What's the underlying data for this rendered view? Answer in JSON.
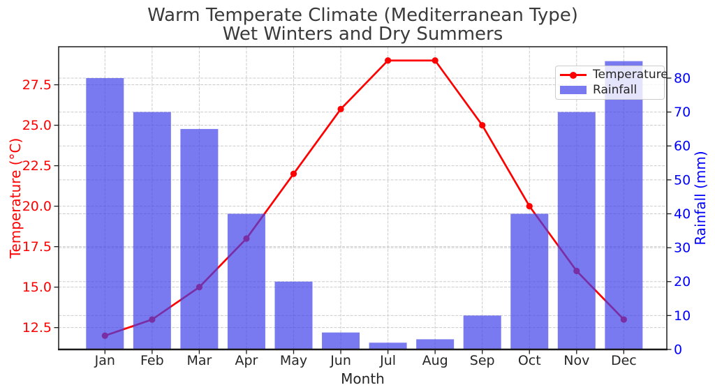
{
  "chart_data": {
    "type": "combo-line-bar",
    "title": "Warm Temperate Climate (Mediterranean Type)\nWet Winters and Dry Summers",
    "title_lines": [
      "Warm Temperate Climate (Mediterranean Type)",
      "Wet Winters and Dry Summers"
    ],
    "xlabel": "Month",
    "categories": [
      "Jan",
      "Feb",
      "Mar",
      "Apr",
      "May",
      "Jun",
      "Jul",
      "Aug",
      "Sep",
      "Oct",
      "Nov",
      "Dec"
    ],
    "series": [
      {
        "name": "Temperature",
        "chart": "line",
        "axis": "left",
        "unit": "°C",
        "color": "#ff0000",
        "marker": "circle",
        "values": [
          12,
          13,
          15,
          18,
          22,
          26,
          29,
          29,
          25,
          20,
          16,
          13
        ]
      },
      {
        "name": "Rainfall",
        "chart": "bar",
        "axis": "right",
        "unit": "mm",
        "color": "#4141ea",
        "opacity": 0.7,
        "values": [
          80,
          70,
          65,
          40,
          20,
          5,
          2,
          3,
          10,
          40,
          70,
          85
        ]
      }
    ],
    "axes": {
      "left": {
        "label": "Temperature (°C)",
        "color": "#ff0000",
        "ticks": [
          12.5,
          15.0,
          17.5,
          20.0,
          22.5,
          25.0,
          27.5
        ],
        "tick_labels": [
          "12.5",
          "15.0",
          "17.5",
          "20.0",
          "22.5",
          "25.0",
          "27.5"
        ],
        "range": [
          11.15,
          29.85
        ]
      },
      "right": {
        "label": "Rainfall (mm)",
        "color": "#0000ff",
        "ticks": [
          0,
          10,
          20,
          30,
          40,
          50,
          60,
          70,
          80
        ],
        "tick_labels": [
          "0",
          "10",
          "20",
          "30",
          "40",
          "50",
          "60",
          "70",
          "80"
        ],
        "range": [
          0,
          89.25
        ]
      }
    },
    "legend": {
      "position": "upper right",
      "entries": [
        "Temperature",
        "Rainfall"
      ]
    },
    "grid": true,
    "grid_color": "#cbcbcb",
    "background": "#ffffff",
    "text_color": "#262626"
  }
}
